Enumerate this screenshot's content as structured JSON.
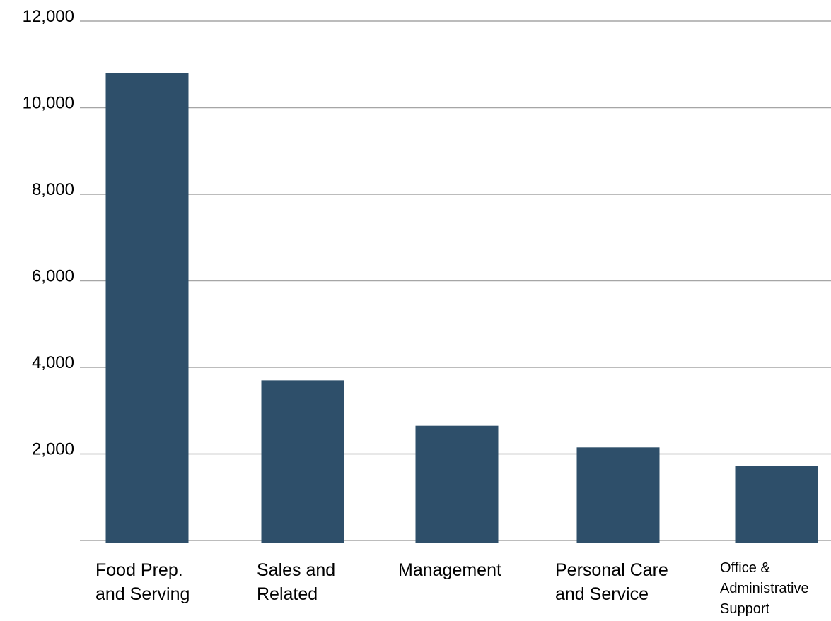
{
  "chart_data": {
    "type": "bar",
    "title": "",
    "xlabel": "",
    "ylabel": "",
    "categories": [
      "Food Prep. and Serving",
      "Sales and Related",
      "Management",
      "Personal Care and Service",
      "Office & Administrative Support"
    ],
    "category_label_lines": [
      [
        "Food Prep.",
        "and Serving"
      ],
      [
        "Sales and",
        "Related"
      ],
      [
        "Management"
      ],
      [
        "Personal Care",
        "and Service"
      ],
      [
        "Office &",
        "Administrative",
        "Support"
      ]
    ],
    "values": [
      10800,
      3700,
      2650,
      2150,
      1720
    ],
    "ylim": [
      0,
      12000
    ],
    "yticks": [
      2000,
      4000,
      6000,
      8000,
      10000,
      12000
    ],
    "ytick_labels": [
      "2,000",
      "4,000",
      "6,000",
      "8,000",
      "10,000",
      "12,000"
    ],
    "grid": true,
    "legend": "none",
    "colors": {
      "bar": "#2e4f6a",
      "grid": "#a6a6a6",
      "text": "#000000"
    }
  }
}
